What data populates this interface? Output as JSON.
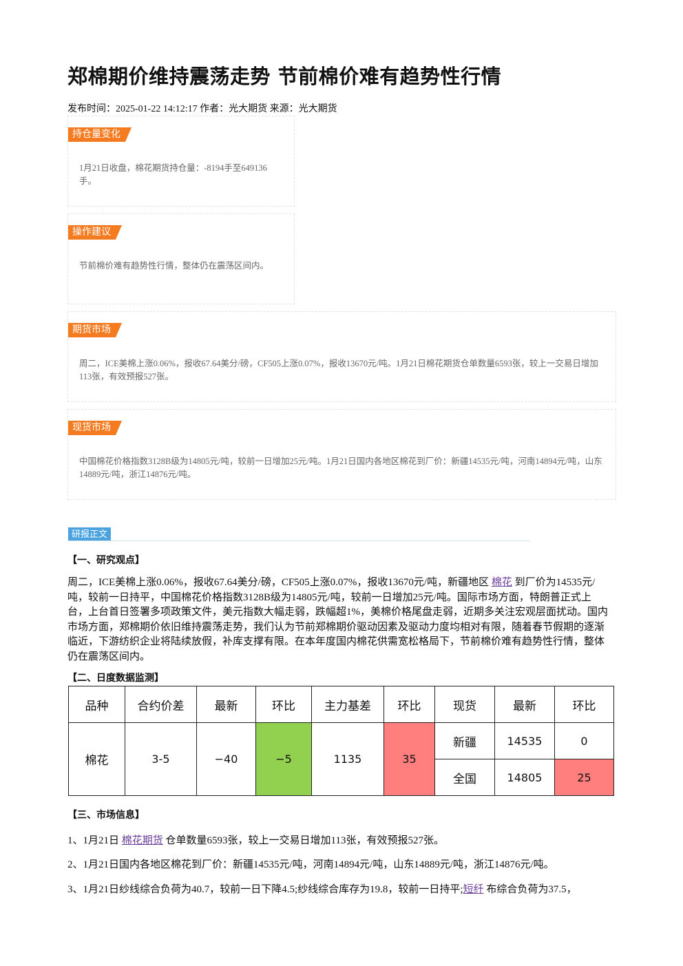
{
  "header": {
    "title": "郑棉期价维持震荡走势 节前棉价难有趋势性行情",
    "meta": "发布时间：2025-01-22 14:12:17 作者：光大期货 来源：光大期货"
  },
  "boxes": [
    {
      "label": "持仓量变化",
      "text": "1月21日收盘，棉花期货持仓量：-8194手至649136手。"
    },
    {
      "label": "操作建议",
      "text": "节前棉价难有趋势性行情，整体仍在震荡区间内。"
    },
    {
      "label": "期货市场",
      "text": "周二，ICE美棉上涨0.06%，报收67.64美分/磅，CF505上涨0.07%，报收13670元/吨。1月21日棉花期货仓单数量6593张，较上一交易日增加113张，有效预报527张。"
    },
    {
      "label": "现货市场",
      "text": "中国棉花价格指数3128B级为14805元/吨，较前一日增加25元/吨。1月21日国内各地区棉花到厂价：新疆14535元/吨，河南14894元/吨，山东14889元/吨，浙江14876元/吨。"
    }
  ],
  "section_tag": "研报正文",
  "section1": {
    "heading": "【一、研究观点】",
    "before": "周二，ICE美棉上涨0.06%，报收67.64美分/磅，CF505上涨0.07%，报收13670元/吨，新疆地区 ",
    "link": "棉花",
    "after": " 到厂价为14535元/吨，较前一日持平，中国棉花价格指数3128B级为14805元/吨，较前一日增加25元/吨。国际市场方面，特朗普正式上台，上台首日签署多项政策文件，美元指数大幅走弱，跌幅超1%，美棉价格尾盘走弱，近期多关注宏观层面扰动。国内市场方面，郑棉期价依旧维持震荡走势，我们认为节前郑棉期价驱动因素及驱动力度均相对有限，随着春节假期的逐渐临近，下游纺织企业将陆续放假，补库支撑有限。在本年度国内棉花供需宽松格局下，节前棉价难有趋势性行情，整体仍在震荡区间内。"
  },
  "section2": {
    "heading": "【二、日度数据监测】",
    "table": {
      "header": [
        "品种",
        "合约价差",
        "最新",
        "环比",
        "主力基差",
        "环比",
        "现货",
        "最新",
        "环比"
      ],
      "main": [
        "棉花",
        "3-5",
        "−40",
        "−5",
        "1135",
        "35"
      ],
      "spot": [
        [
          "新疆",
          "14535",
          "0"
        ],
        [
          "全国",
          "14805",
          "25"
        ]
      ]
    }
  },
  "section3": {
    "heading": "【三、市场信息】",
    "items": [
      {
        "before": "1、1月21日 ",
        "link": "棉花期货",
        "after": " 仓单数量6593张，较上一交易日增加113张，有效预报527张。"
      },
      {
        "before": "2、1月21日国内各地区棉花到厂价：新疆14535元/吨，河南14894元/吨，山东14889元/吨，浙江14876元/吨。"
      },
      {
        "before": "3、1月21日纱线综合负荷为40.7，较前一日下降4.5;纱线综合库存为19.8，较前一日持平;",
        "link": "短纤",
        "after": " 布综合负荷为37.5，"
      }
    ]
  }
}
